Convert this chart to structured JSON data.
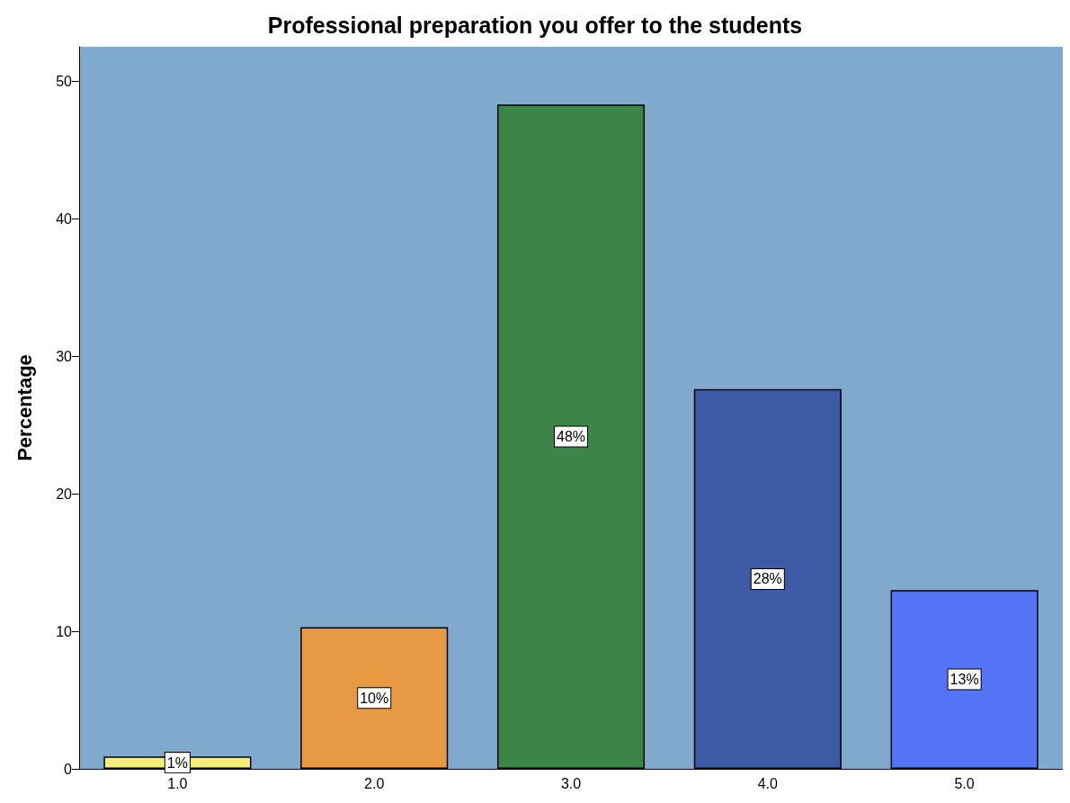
{
  "chart_data": {
    "type": "bar",
    "title": "Professional preparation you offer to the students",
    "ylabel": "Percentage",
    "categories": [
      "1.0",
      "2.0",
      "3.0",
      "4.0",
      "5.0"
    ],
    "values": [
      0.9,
      10.3,
      48.3,
      27.6,
      13.0
    ],
    "colors": [
      "#f5ec7a",
      "#e89a42",
      "#3d8449",
      "#3d5aa5",
      "#5473f5"
    ],
    "value_labels": [
      "1%",
      "10%",
      "48%",
      "28%",
      "13%"
    ],
    "ylim": [
      0,
      52.5
    ],
    "yticks": [
      0,
      10,
      20,
      30,
      40,
      50
    ],
    "grid": false
  }
}
